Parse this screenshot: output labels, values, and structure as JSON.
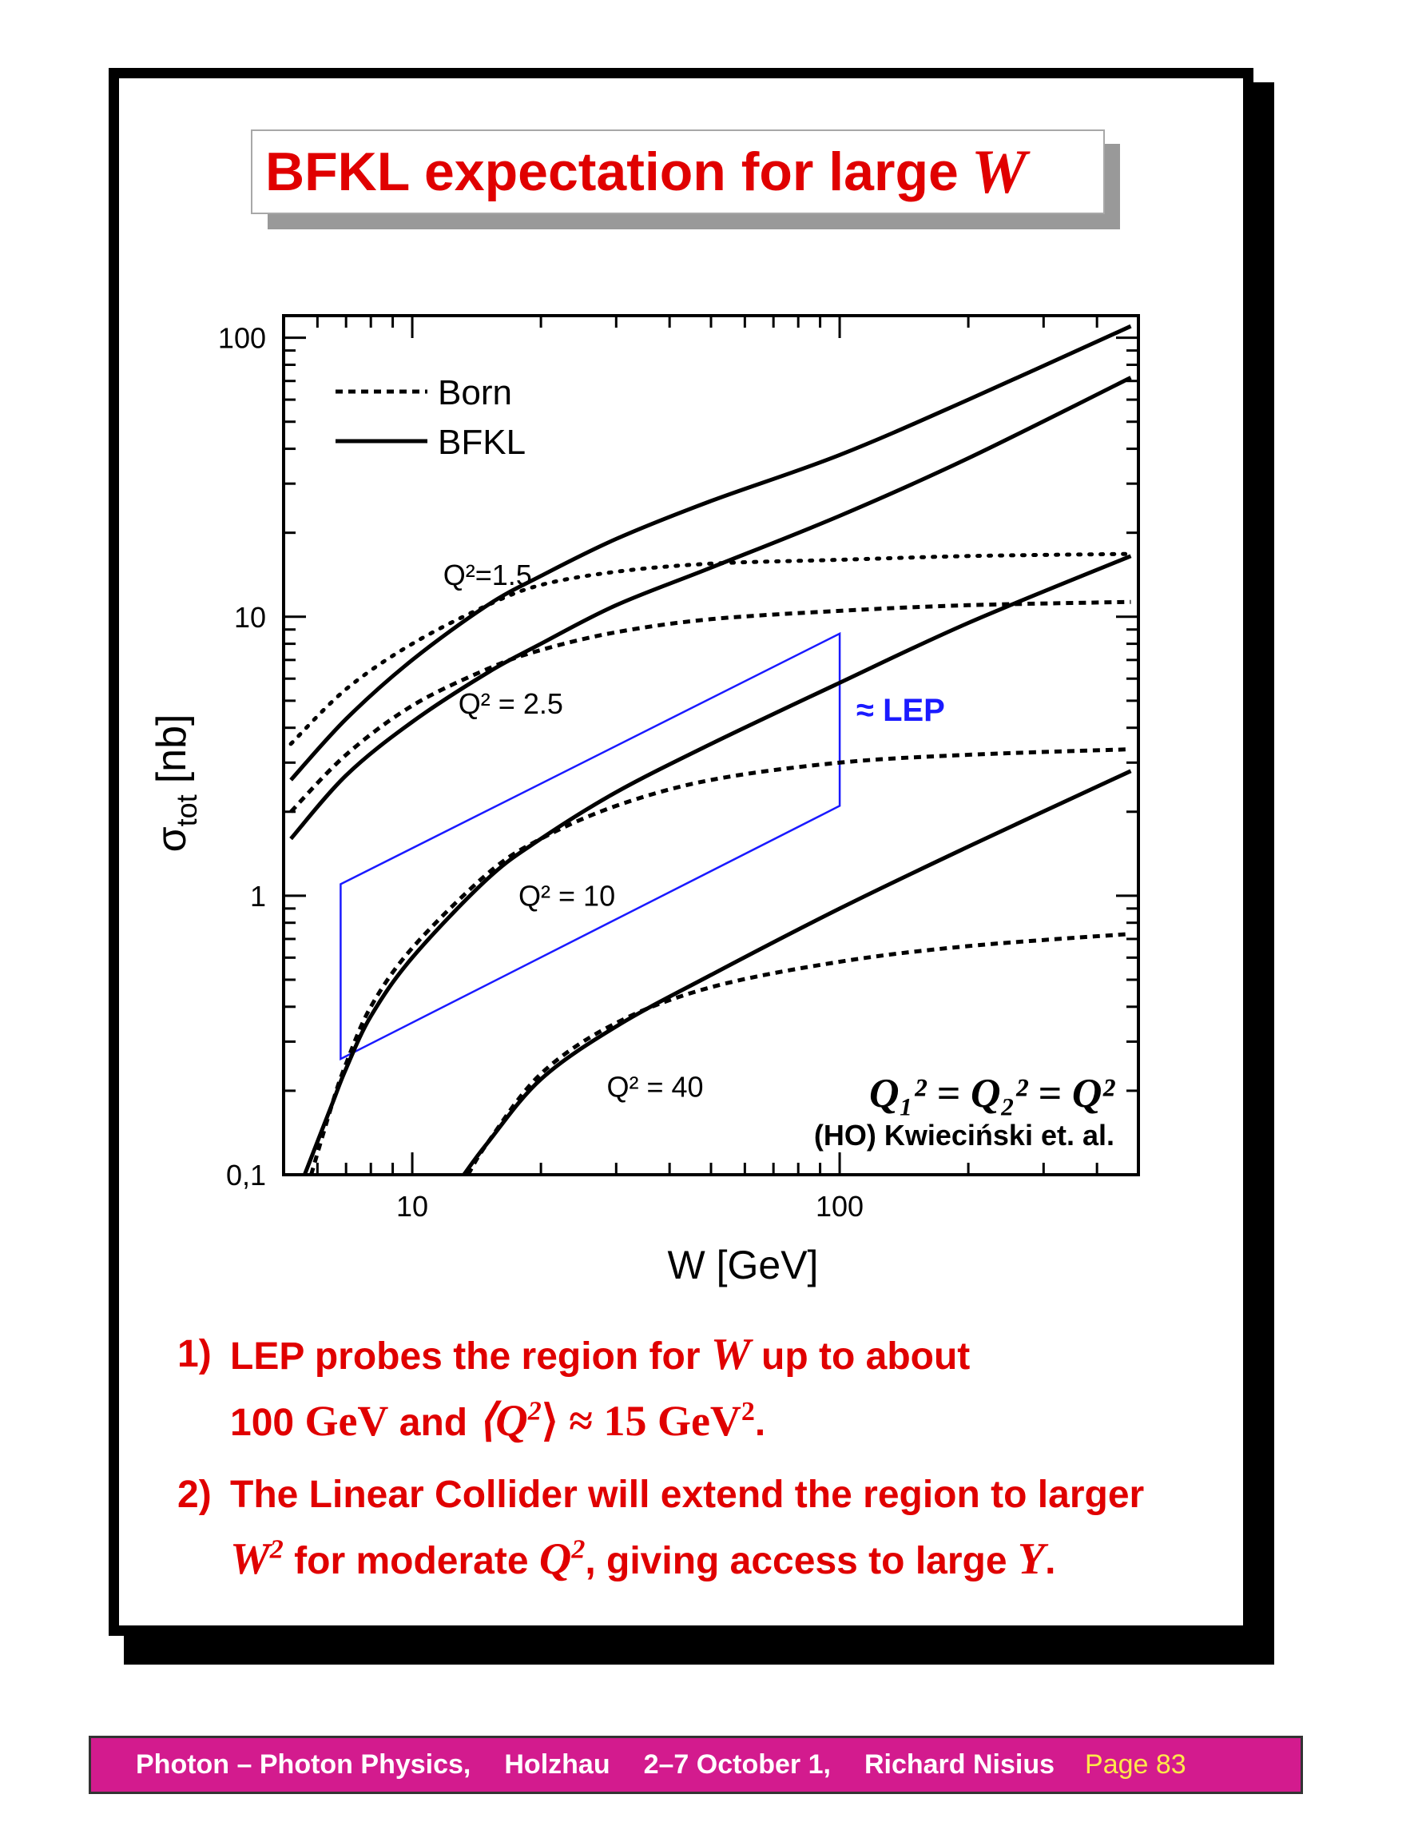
{
  "slide": {
    "title": "BFKL expectation for large",
    "title_math": "W"
  },
  "bullets": [
    {
      "num": "1)",
      "line1_a": "LEP probes the region for",
      "line1_m": "W",
      "line1_b": "up to about",
      "line2_a": "100",
      "line2_unit": "GeV",
      "line2_and": "and",
      "line2_q": "⟨Q",
      "line2_q_sup": "2",
      "line2_q_close": "⟩ ≈ 15 GeV",
      "line2_q_close_sup": "2",
      "line2_end": "."
    },
    {
      "num": "2)",
      "line1": "The Linear Collider will extend the region to larger",
      "line2_w": "W",
      "line2_w_sup": "2",
      "line2_a": "for moderate",
      "line2_q": "Q",
      "line2_q_sup": "2",
      "line2_b": ", giving access to large",
      "line2_y": "Y",
      "line2_end": "."
    }
  ],
  "footer": {
    "topic": "Photon – Photon Physics,",
    "place": "Holzhau",
    "dates": "2–7 October 1,",
    "author": "Richard Nisius",
    "page": "Page 83"
  },
  "chart_data": {
    "type": "line",
    "xlabel": "W [GeV]",
    "ylabel": "σ",
    "ylabel_sub": "tot",
    "ylabel_unit": "[nb]",
    "xscale": "log",
    "yscale": "log",
    "xlim": [
      5,
      500
    ],
    "ylim": [
      0.1,
      120
    ],
    "xtick_labels": [
      {
        "v": 10,
        "label": "10"
      },
      {
        "v": 100,
        "label": "100"
      }
    ],
    "ytick_labels": [
      {
        "v": 0.1,
        "label": "0,1"
      },
      {
        "v": 1,
        "label": "1"
      },
      {
        "v": 10,
        "label": "10"
      },
      {
        "v": 100,
        "label": "100"
      }
    ],
    "legend": {
      "placement": "top-left",
      "entries": [
        {
          "style": "dashed",
          "label": "Born"
        },
        {
          "style": "solid",
          "label": "BFKL"
        }
      ]
    },
    "curve_labels": [
      {
        "text": "Q²=1.5",
        "x": 15,
        "y": 13
      },
      {
        "text": "Q² = 2.5",
        "x": 17,
        "y": 4.5
      },
      {
        "text": "Q² = 10",
        "x": 23,
        "y": 0.92
      },
      {
        "text": "Q² = 40",
        "x": 37,
        "y": 0.19
      }
    ],
    "annotations": {
      "formula": "Q₁² = Q₂² = Q²",
      "credit": "(HO) Kwieciński et. al.",
      "lep_label": "≈ LEP",
      "lep_color": "#1a1aff"
    },
    "lep_region": [
      {
        "x": 6.8,
        "y": 1.1
      },
      {
        "x": 100,
        "y": 8.7
      },
      {
        "x": 100,
        "y": 2.1
      },
      {
        "x": 6.8,
        "y": 0.26
      }
    ],
    "series": [
      {
        "group": "Q2=1.5",
        "style": "dotted",
        "points": [
          [
            5.2,
            3.5
          ],
          [
            7,
            5.5
          ],
          [
            10,
            8.0
          ],
          [
            15,
            11.0
          ],
          [
            20,
            13.0
          ],
          [
            30,
            14.5
          ],
          [
            50,
            15.5
          ],
          [
            100,
            16.0
          ],
          [
            200,
            16.5
          ],
          [
            480,
            16.8
          ]
        ]
      },
      {
        "group": "Q2=1.5",
        "style": "solid",
        "points": [
          [
            5.2,
            2.6
          ],
          [
            7,
            4.3
          ],
          [
            10,
            7.0
          ],
          [
            15,
            11.0
          ],
          [
            20,
            14.0
          ],
          [
            30,
            19.0
          ],
          [
            50,
            26.0
          ],
          [
            100,
            38.0
          ],
          [
            200,
            60.0
          ],
          [
            480,
            110.0
          ]
        ]
      },
      {
        "group": "Q2=2.5",
        "style": "dashed",
        "points": [
          [
            5.2,
            2.0
          ],
          [
            7,
            3.2
          ],
          [
            10,
            4.8
          ],
          [
            15,
            6.5
          ],
          [
            20,
            7.6
          ],
          [
            30,
            8.8
          ],
          [
            50,
            9.8
          ],
          [
            100,
            10.5
          ],
          [
            200,
            11.0
          ],
          [
            480,
            11.3
          ]
        ]
      },
      {
        "group": "Q2=2.5",
        "style": "solid",
        "points": [
          [
            5.2,
            1.6
          ],
          [
            7,
            2.7
          ],
          [
            10,
            4.2
          ],
          [
            15,
            6.3
          ],
          [
            20,
            8.0
          ],
          [
            30,
            11.0
          ],
          [
            50,
            15.0
          ],
          [
            100,
            23.0
          ],
          [
            200,
            37.0
          ],
          [
            480,
            72.0
          ]
        ]
      },
      {
        "group": "Q2=10",
        "style": "dashed",
        "points": [
          [
            5.8,
            0.1
          ],
          [
            6.5,
            0.18
          ],
          [
            7,
            0.25
          ],
          [
            8,
            0.4
          ],
          [
            10,
            0.65
          ],
          [
            15,
            1.2
          ],
          [
            20,
            1.6
          ],
          [
            30,
            2.1
          ],
          [
            50,
            2.6
          ],
          [
            100,
            3.0
          ],
          [
            200,
            3.2
          ],
          [
            480,
            3.35
          ]
        ]
      },
      {
        "group": "Q2=10",
        "style": "solid",
        "points": [
          [
            5.6,
            0.1
          ],
          [
            6.5,
            0.18
          ],
          [
            7,
            0.24
          ],
          [
            8,
            0.37
          ],
          [
            10,
            0.6
          ],
          [
            15,
            1.15
          ],
          [
            20,
            1.6
          ],
          [
            30,
            2.35
          ],
          [
            50,
            3.5
          ],
          [
            100,
            5.8
          ],
          [
            200,
            9.5
          ],
          [
            480,
            16.5
          ]
        ]
      },
      {
        "group": "Q2=40",
        "style": "dashed",
        "points": [
          [
            13.5,
            0.1
          ],
          [
            15,
            0.13
          ],
          [
            20,
            0.23
          ],
          [
            30,
            0.35
          ],
          [
            50,
            0.47
          ],
          [
            100,
            0.58
          ],
          [
            200,
            0.66
          ],
          [
            480,
            0.73
          ]
        ]
      },
      {
        "group": "Q2=40",
        "style": "solid",
        "points": [
          [
            13.2,
            0.1
          ],
          [
            15,
            0.13
          ],
          [
            20,
            0.22
          ],
          [
            30,
            0.34
          ],
          [
            50,
            0.52
          ],
          [
            100,
            0.9
          ],
          [
            200,
            1.5
          ],
          [
            480,
            2.8
          ]
        ]
      }
    ]
  }
}
